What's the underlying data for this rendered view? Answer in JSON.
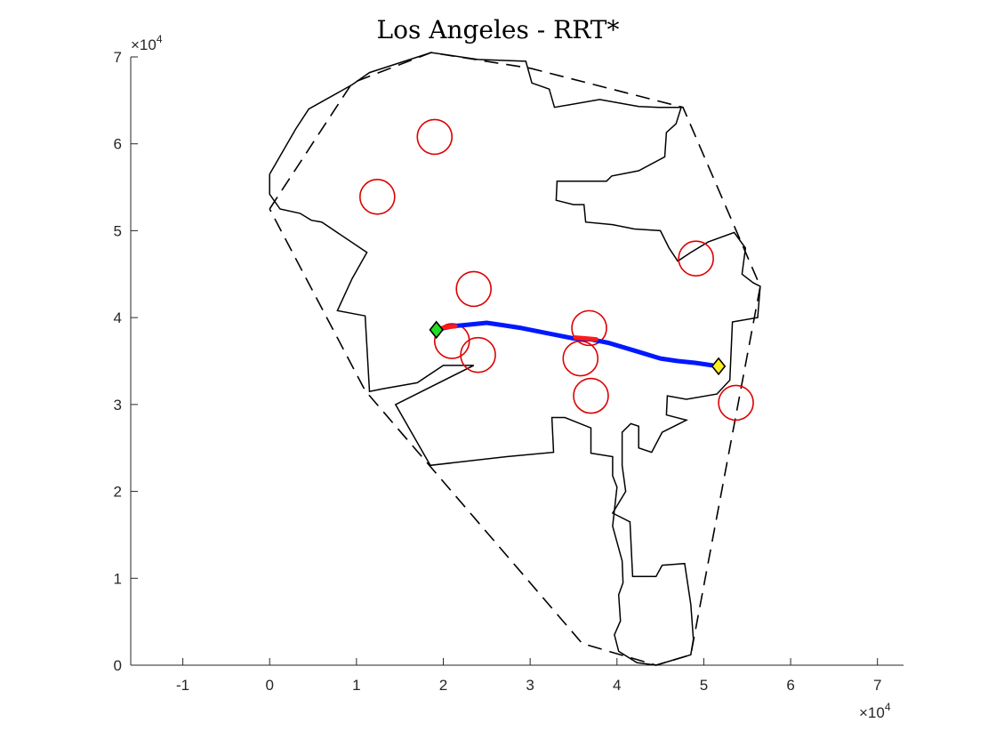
{
  "chart_data": {
    "type": "line",
    "title": "Los Angeles - RRT*",
    "xlabel": "",
    "ylabel": "",
    "xlim": [
      -16000,
      73000
    ],
    "ylim": [
      0,
      70000
    ],
    "xticks": [
      -10000,
      0,
      10000,
      20000,
      30000,
      40000,
      50000,
      60000,
      70000
    ],
    "yticks": [
      0,
      10000,
      20000,
      30000,
      40000,
      50000,
      60000,
      70000
    ],
    "xtick_labels": [
      "-1",
      "0",
      "1",
      "2",
      "3",
      "4",
      "5",
      "6",
      "7"
    ],
    "ytick_labels": [
      "0",
      "1",
      "2",
      "3",
      "4",
      "5",
      "6",
      "7"
    ],
    "x_exponent_label": "×10",
    "x_exponent_power": "4",
    "y_exponent_label": "×10",
    "y_exponent_power": "4",
    "grid": false,
    "colors": {
      "boundary": "#000000",
      "hull": "#000000",
      "obstacles": "#dd0000",
      "path": "#0018ff",
      "path_near_obstacle": "#ff1a1a",
      "start": "#22dd22",
      "goal": "#ffee22"
    },
    "start": {
      "x": 19200,
      "y": 38600
    },
    "goal": {
      "x": 51700,
      "y": 34400
    },
    "obstacles": [
      {
        "x": 19000,
        "y": 60800,
        "r": 2000
      },
      {
        "x": 12400,
        "y": 53900,
        "r": 2000
      },
      {
        "x": 23500,
        "y": 43300,
        "r": 2000
      },
      {
        "x": 49100,
        "y": 46800,
        "r": 2000
      },
      {
        "x": 36800,
        "y": 38800,
        "r": 2000
      },
      {
        "x": 21000,
        "y": 37300,
        "r": 2000
      },
      {
        "x": 24000,
        "y": 35700,
        "r": 2000
      },
      {
        "x": 35800,
        "y": 35300,
        "r": 2000
      },
      {
        "x": 37000,
        "y": 31000,
        "r": 2000
      },
      {
        "x": 53700,
        "y": 30200,
        "r": 2000
      }
    ],
    "path": [
      {
        "x": 19200,
        "y": 38600
      },
      {
        "x": 21000,
        "y": 39000
      },
      {
        "x": 23000,
        "y": 39200
      },
      {
        "x": 25000,
        "y": 39400
      },
      {
        "x": 27000,
        "y": 39100
      },
      {
        "x": 29000,
        "y": 38800
      },
      {
        "x": 31000,
        "y": 38400
      },
      {
        "x": 33000,
        "y": 38000
      },
      {
        "x": 35000,
        "y": 37600
      },
      {
        "x": 37000,
        "y": 37500
      },
      {
        "x": 39000,
        "y": 37100
      },
      {
        "x": 41000,
        "y": 36500
      },
      {
        "x": 43000,
        "y": 35900
      },
      {
        "x": 45000,
        "y": 35300
      },
      {
        "x": 47000,
        "y": 35000
      },
      {
        "x": 49000,
        "y": 34800
      },
      {
        "x": 51700,
        "y": 34400
      }
    ],
    "path_near_obstacle_segments": [
      [
        {
          "x": 19200,
          "y": 38600
        },
        {
          "x": 20300,
          "y": 38900
        },
        {
          "x": 21400,
          "y": 39000
        }
      ],
      [
        {
          "x": 35200,
          "y": 37700
        },
        {
          "x": 36500,
          "y": 37600
        },
        {
          "x": 37600,
          "y": 37500
        }
      ]
    ],
    "convex_hull": [
      {
        "x": 0,
        "y": 52500
      },
      {
        "x": 9500,
        "y": 67000
      },
      {
        "x": 18600,
        "y": 70500
      },
      {
        "x": 30000,
        "y": 68700
      },
      {
        "x": 47600,
        "y": 64200
      },
      {
        "x": 56500,
        "y": 43600
      },
      {
        "x": 48500,
        "y": 1200
      },
      {
        "x": 44500,
        "y": 0
      },
      {
        "x": 36000,
        "y": 2500
      },
      {
        "x": 11000,
        "y": 31600
      },
      {
        "x": 0,
        "y": 52500
      }
    ],
    "city_boundary": [
      {
        "x": 0,
        "y": 56500
      },
      {
        "x": 3000,
        "y": 61700
      },
      {
        "x": 4500,
        "y": 64000
      },
      {
        "x": 9500,
        "y": 66800
      },
      {
        "x": 11500,
        "y": 68200
      },
      {
        "x": 18600,
        "y": 70500
      },
      {
        "x": 24000,
        "y": 69700
      },
      {
        "x": 29500,
        "y": 69500
      },
      {
        "x": 30200,
        "y": 67000
      },
      {
        "x": 32200,
        "y": 66300
      },
      {
        "x": 32800,
        "y": 64200
      },
      {
        "x": 38000,
        "y": 65100
      },
      {
        "x": 42500,
        "y": 64300
      },
      {
        "x": 44800,
        "y": 64200
      },
      {
        "x": 47400,
        "y": 64200
      },
      {
        "x": 46800,
        "y": 62300
      },
      {
        "x": 45700,
        "y": 61300
      },
      {
        "x": 45500,
        "y": 58500
      },
      {
        "x": 42500,
        "y": 56900
      },
      {
        "x": 39400,
        "y": 56300
      },
      {
        "x": 38800,
        "y": 55700
      },
      {
        "x": 33100,
        "y": 55700
      },
      {
        "x": 33000,
        "y": 53500
      },
      {
        "x": 35000,
        "y": 53000
      },
      {
        "x": 36200,
        "y": 53000
      },
      {
        "x": 36400,
        "y": 51000
      },
      {
        "x": 39500,
        "y": 50700
      },
      {
        "x": 42000,
        "y": 50200
      },
      {
        "x": 45000,
        "y": 50000
      },
      {
        "x": 46000,
        "y": 48000
      },
      {
        "x": 47000,
        "y": 46500
      },
      {
        "x": 48500,
        "y": 47500
      },
      {
        "x": 50500,
        "y": 48700
      },
      {
        "x": 53500,
        "y": 49800
      },
      {
        "x": 54800,
        "y": 48000
      },
      {
        "x": 54400,
        "y": 45000
      },
      {
        "x": 55700,
        "y": 44000
      },
      {
        "x": 56500,
        "y": 43600
      },
      {
        "x": 56200,
        "y": 40000
      },
      {
        "x": 53300,
        "y": 39500
      },
      {
        "x": 53000,
        "y": 32800
      },
      {
        "x": 51500,
        "y": 31200
      },
      {
        "x": 48000,
        "y": 30600
      },
      {
        "x": 45800,
        "y": 31000
      },
      {
        "x": 45700,
        "y": 28800
      },
      {
        "x": 48000,
        "y": 28200
      },
      {
        "x": 45200,
        "y": 26800
      },
      {
        "x": 44000,
        "y": 24500
      },
      {
        "x": 42500,
        "y": 25000
      },
      {
        "x": 42500,
        "y": 27500
      },
      {
        "x": 41600,
        "y": 27800
      },
      {
        "x": 40600,
        "y": 26800
      },
      {
        "x": 40600,
        "y": 23000
      },
      {
        "x": 41000,
        "y": 20000
      },
      {
        "x": 39500,
        "y": 17500
      },
      {
        "x": 41500,
        "y": 16500
      },
      {
        "x": 41800,
        "y": 10200
      },
      {
        "x": 44500,
        "y": 10200
      },
      {
        "x": 45200,
        "y": 11500
      },
      {
        "x": 47800,
        "y": 11700
      },
      {
        "x": 48500,
        "y": 7000
      },
      {
        "x": 48800,
        "y": 3000
      },
      {
        "x": 48500,
        "y": 1200
      },
      {
        "x": 44500,
        "y": 0
      },
      {
        "x": 42300,
        "y": 300
      },
      {
        "x": 40200,
        "y": 1600
      },
      {
        "x": 39700,
        "y": 3500
      },
      {
        "x": 40400,
        "y": 5100
      },
      {
        "x": 40200,
        "y": 8100
      },
      {
        "x": 40700,
        "y": 9500
      },
      {
        "x": 40600,
        "y": 12000
      },
      {
        "x": 39500,
        "y": 16000
      },
      {
        "x": 40000,
        "y": 20500
      },
      {
        "x": 39500,
        "y": 21800
      },
      {
        "x": 39500,
        "y": 24000
      },
      {
        "x": 37000,
        "y": 24400
      },
      {
        "x": 37000,
        "y": 27300
      },
      {
        "x": 34000,
        "y": 28500
      },
      {
        "x": 32500,
        "y": 28500
      },
      {
        "x": 32700,
        "y": 24500
      },
      {
        "x": 27300,
        "y": 24000
      },
      {
        "x": 18500,
        "y": 23000
      },
      {
        "x": 14500,
        "y": 30000
      },
      {
        "x": 23500,
        "y": 34500
      },
      {
        "x": 20000,
        "y": 34500
      },
      {
        "x": 17000,
        "y": 32500
      },
      {
        "x": 13000,
        "y": 31800
      },
      {
        "x": 11500,
        "y": 31500
      },
      {
        "x": 11000,
        "y": 40200
      },
      {
        "x": 7800,
        "y": 40800
      },
      {
        "x": 9500,
        "y": 44500
      },
      {
        "x": 11200,
        "y": 47500
      },
      {
        "x": 6000,
        "y": 51000
      },
      {
        "x": 4800,
        "y": 51200
      },
      {
        "x": 3500,
        "y": 52000
      },
      {
        "x": 1200,
        "y": 52500
      },
      {
        "x": 0,
        "y": 54200
      },
      {
        "x": 0,
        "y": 56500
      }
    ]
  }
}
